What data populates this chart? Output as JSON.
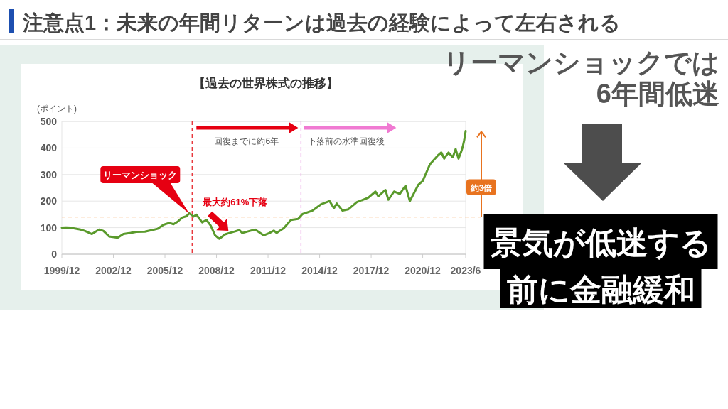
{
  "chart_data": {
    "type": "line",
    "title": "注意点1：未来の年間リターンは過去の経験によって左右される",
    "subtitle": "【過去の世界株式の推移】",
    "ylabel": "(ポイント)",
    "x": [
      "1999-12",
      "2000-03",
      "2000-06",
      "2000-09",
      "2001-01",
      "2001-04",
      "2001-09",
      "2002-02",
      "2002-05",
      "2002-09",
      "2003-03",
      "2003-07",
      "2003-12",
      "2004-04",
      "2004-10",
      "2005-03",
      "2005-07",
      "2005-11",
      "2006-03",
      "2006-06",
      "2006-09",
      "2006-12",
      "2007-03",
      "2007-05",
      "2007-08",
      "2007-10",
      "2008-02",
      "2008-05",
      "2008-08",
      "2008-11",
      "2009-02",
      "2009-06",
      "2009-09",
      "2010-01",
      "2010-04",
      "2010-06",
      "2010-10",
      "2011-03",
      "2011-09",
      "2012-01",
      "2012-04",
      "2012-06",
      "2012-11",
      "2013-04",
      "2013-09",
      "2013-12",
      "2014-07",
      "2015-01",
      "2015-07",
      "2015-10",
      "2015-12",
      "2016-04",
      "2016-08",
      "2017-02",
      "2017-10",
      "2018-03",
      "2018-05",
      "2018-10",
      "2018-12",
      "2019-04",
      "2019-08",
      "2019-12",
      "2020-03",
      "2020-09",
      "2020-12",
      "2021-05",
      "2021-11",
      "2022-01",
      "2022-03",
      "2022-06",
      "2022-09",
      "2022-11",
      "2023-01",
      "2023-03",
      "2023-04",
      "2023-05",
      "2023-06"
    ],
    "values": [
      100,
      101,
      100,
      97,
      93,
      88,
      76,
      93,
      88,
      67,
      62,
      76,
      80,
      84,
      85,
      91,
      96,
      111,
      118,
      113,
      123,
      138,
      143,
      154,
      142,
      149,
      120,
      129,
      107,
      71,
      58,
      75,
      80,
      86,
      91,
      80,
      86,
      93,
      71,
      80,
      89,
      80,
      98,
      129,
      133,
      151,
      164,
      188,
      200,
      173,
      191,
      164,
      169,
      196,
      213,
      236,
      218,
      242,
      205,
      236,
      227,
      258,
      200,
      262,
      276,
      338,
      374,
      383,
      360,
      383,
      365,
      396,
      360,
      388,
      405,
      430,
      464
    ],
    "color": "#5a9a2c",
    "xlim": [
      "1999-12",
      "2023-06"
    ],
    "xticks": [
      {
        "value": "1999-12",
        "label": "1999/12"
      },
      {
        "value": "2002-12",
        "label": "2002/12"
      },
      {
        "value": "2005-12",
        "label": "2005/12"
      },
      {
        "value": "2008-12",
        "label": "2008/12"
      },
      {
        "value": "2011-12",
        "label": "2011/12"
      },
      {
        "value": "2014-12",
        "label": "2014/12"
      },
      {
        "value": "2017-12",
        "label": "2017/12"
      },
      {
        "value": "2020-12",
        "label": "2020/12"
      },
      {
        "value": "2023-06",
        "label": "2023/6"
      }
    ],
    "ylim": [
      0,
      500
    ],
    "yticks": [
      0,
      100,
      200,
      300,
      400,
      500
    ],
    "grid": "y",
    "ref_lines": [
      {
        "axis": "x",
        "value": "2007-07",
        "color": "#e8383d",
        "line_style": "dashed"
      },
      {
        "axis": "x",
        "value": "2013-11",
        "color": "#e9a3e4",
        "line_style": "dashed"
      },
      {
        "axis": "y",
        "value": 140,
        "color": "#f5b27a",
        "line_style": "dashed"
      }
    ],
    "annotations": [
      "リーマンショック",
      "最大約61%下落",
      "回復までに約6年",
      "下落前の水準回復後",
      "約3倍",
      "リーマンショックでは",
      "6年間低迷",
      "景気が低迷する",
      "前に金融緩和"
    ]
  }
}
